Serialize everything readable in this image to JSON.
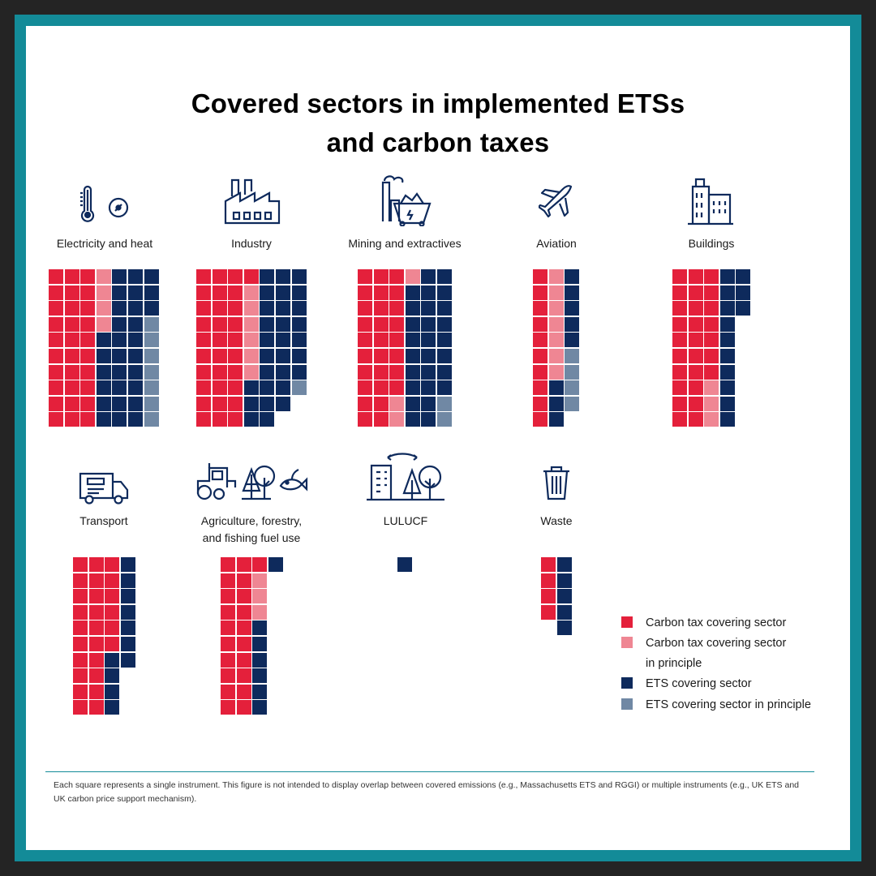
{
  "colors": {
    "carbon_tax": "#e4203b",
    "carbon_tax_principle": "#ef8693",
    "ets": "#0e2a5c",
    "ets_principle": "#7088a4",
    "frame": "#138b98",
    "icon": "#0e2a5c"
  },
  "title": {
    "line1": "Covered sectors in implemented ETSs",
    "line2": "and carbon taxes"
  },
  "chart_data": {
    "type": "waffle",
    "title": "Covered sectors in implemented ETSs and carbon taxes",
    "unit": "Each square represents a single instrument",
    "categories": [
      "carbon_tax",
      "carbon_tax_principle",
      "ets",
      "ets_principle"
    ],
    "sectors": [
      {
        "id": "electricity",
        "label": "Electricity and heat",
        "icon": "thermometer-gauge-icon",
        "columns": [
          [
            "carbon_tax",
            "carbon_tax",
            "carbon_tax",
            "carbon_tax",
            "carbon_tax",
            "carbon_tax",
            "carbon_tax",
            "carbon_tax",
            "carbon_tax",
            "carbon_tax"
          ],
          [
            "carbon_tax",
            "carbon_tax",
            "carbon_tax",
            "carbon_tax",
            "carbon_tax",
            "carbon_tax",
            "carbon_tax",
            "carbon_tax",
            "carbon_tax",
            "carbon_tax"
          ],
          [
            "carbon_tax",
            "carbon_tax",
            "carbon_tax",
            "carbon_tax",
            "carbon_tax",
            "carbon_tax",
            "carbon_tax",
            "carbon_tax",
            "carbon_tax",
            "carbon_tax"
          ],
          [
            "carbon_tax_principle",
            "carbon_tax_principle",
            "carbon_tax_principle",
            "carbon_tax_principle",
            "ets",
            "ets",
            "ets",
            "ets",
            "ets",
            "ets"
          ],
          [
            "ets",
            "ets",
            "ets",
            "ets",
            "ets",
            "ets",
            "ets",
            "ets",
            "ets",
            "ets"
          ],
          [
            "ets",
            "ets",
            "ets",
            "ets",
            "ets",
            "ets",
            "ets",
            "ets",
            "ets",
            "ets"
          ],
          [
            "ets",
            "ets",
            "ets",
            "ets_principle",
            "ets_principle",
            "ets_principle",
            "ets_principle",
            "ets_principle",
            "ets_principle",
            "ets_principle"
          ]
        ]
      },
      {
        "id": "industry",
        "label": "Industry",
        "icon": "factory-icon",
        "columns": [
          [
            "carbon_tax",
            "carbon_tax",
            "carbon_tax",
            "carbon_tax",
            "carbon_tax",
            "carbon_tax",
            "carbon_tax",
            "carbon_tax",
            "carbon_tax",
            "carbon_tax"
          ],
          [
            "carbon_tax",
            "carbon_tax",
            "carbon_tax",
            "carbon_tax",
            "carbon_tax",
            "carbon_tax",
            "carbon_tax",
            "carbon_tax",
            "carbon_tax",
            "carbon_tax"
          ],
          [
            "carbon_tax",
            "carbon_tax",
            "carbon_tax",
            "carbon_tax",
            "carbon_tax",
            "carbon_tax",
            "carbon_tax",
            "carbon_tax",
            "carbon_tax",
            "carbon_tax"
          ],
          [
            "carbon_tax",
            "carbon_tax_principle",
            "carbon_tax_principle",
            "carbon_tax_principle",
            "carbon_tax_principle",
            "carbon_tax_principle",
            "carbon_tax_principle",
            "ets",
            "ets",
            "ets"
          ],
          [
            "ets",
            "ets",
            "ets",
            "ets",
            "ets",
            "ets",
            "ets",
            "ets",
            "ets",
            "ets"
          ],
          [
            "ets",
            "ets",
            "ets",
            "ets",
            "ets",
            "ets",
            "ets",
            "ets",
            "ets"
          ],
          [
            "ets",
            "ets",
            "ets",
            "ets",
            "ets",
            "ets",
            "ets",
            "ets_principle"
          ]
        ]
      },
      {
        "id": "mining",
        "label": "Mining and extractives",
        "icon": "mining-cart-icon",
        "columns": [
          [
            "carbon_tax",
            "carbon_tax",
            "carbon_tax",
            "carbon_tax",
            "carbon_tax",
            "carbon_tax",
            "carbon_tax",
            "carbon_tax",
            "carbon_tax",
            "carbon_tax"
          ],
          [
            "carbon_tax",
            "carbon_tax",
            "carbon_tax",
            "carbon_tax",
            "carbon_tax",
            "carbon_tax",
            "carbon_tax",
            "carbon_tax",
            "carbon_tax",
            "carbon_tax"
          ],
          [
            "carbon_tax",
            "carbon_tax",
            "carbon_tax",
            "carbon_tax",
            "carbon_tax",
            "carbon_tax",
            "carbon_tax",
            "carbon_tax",
            "carbon_tax_principle",
            "carbon_tax_principle"
          ],
          [
            "carbon_tax_principle",
            "ets",
            "ets",
            "ets",
            "ets",
            "ets",
            "ets",
            "ets",
            "ets",
            "ets"
          ],
          [
            "ets",
            "ets",
            "ets",
            "ets",
            "ets",
            "ets",
            "ets",
            "ets",
            "ets",
            "ets"
          ],
          [
            "ets",
            "ets",
            "ets",
            "ets",
            "ets",
            "ets",
            "ets",
            "ets",
            "ets_principle",
            "ets_principle"
          ]
        ]
      },
      {
        "id": "aviation",
        "label": "Aviation",
        "icon": "airplane-icon",
        "columns": [
          [
            "carbon_tax",
            "carbon_tax",
            "carbon_tax",
            "carbon_tax",
            "carbon_tax",
            "carbon_tax",
            "carbon_tax",
            "carbon_tax",
            "carbon_tax",
            "carbon_tax"
          ],
          [
            "carbon_tax_principle",
            "carbon_tax_principle",
            "carbon_tax_principle",
            "carbon_tax_principle",
            "carbon_tax_principle",
            "carbon_tax_principle",
            "carbon_tax_principle",
            "ets",
            "ets",
            "ets"
          ],
          [
            "ets",
            "ets",
            "ets",
            "ets",
            "ets",
            "ets_principle",
            "ets_principle",
            "ets_principle",
            "ets_principle"
          ]
        ]
      },
      {
        "id": "buildings",
        "label": "Buildings",
        "icon": "buildings-icon",
        "columns": [
          [
            "carbon_tax",
            "carbon_tax",
            "carbon_tax",
            "carbon_tax",
            "carbon_tax",
            "carbon_tax",
            "carbon_tax",
            "carbon_tax",
            "carbon_tax",
            "carbon_tax"
          ],
          [
            "carbon_tax",
            "carbon_tax",
            "carbon_tax",
            "carbon_tax",
            "carbon_tax",
            "carbon_tax",
            "carbon_tax",
            "carbon_tax",
            "carbon_tax",
            "carbon_tax"
          ],
          [
            "carbon_tax",
            "carbon_tax",
            "carbon_tax",
            "carbon_tax",
            "carbon_tax",
            "carbon_tax",
            "carbon_tax",
            "carbon_tax_principle",
            "carbon_tax_principle",
            "carbon_tax_principle"
          ],
          [
            "ets",
            "ets",
            "ets",
            "ets",
            "ets",
            "ets",
            "ets",
            "ets",
            "ets",
            "ets"
          ],
          [
            "ets",
            "ets",
            "ets"
          ]
        ]
      },
      {
        "id": "transport",
        "label": "Transport",
        "icon": "truck-icon",
        "columns": [
          [
            "carbon_tax",
            "carbon_tax",
            "carbon_tax",
            "carbon_tax",
            "carbon_tax",
            "carbon_tax",
            "carbon_tax",
            "carbon_tax",
            "carbon_tax",
            "carbon_tax"
          ],
          [
            "carbon_tax",
            "carbon_tax",
            "carbon_tax",
            "carbon_tax",
            "carbon_tax",
            "carbon_tax",
            "carbon_tax",
            "carbon_tax",
            "carbon_tax",
            "carbon_tax"
          ],
          [
            "carbon_tax",
            "carbon_tax",
            "carbon_tax",
            "carbon_tax",
            "carbon_tax",
            "carbon_tax",
            "ets",
            "ets",
            "ets",
            "ets"
          ],
          [
            "ets",
            "ets",
            "ets",
            "ets",
            "ets",
            "ets",
            "ets"
          ]
        ]
      },
      {
        "id": "agriculture",
        "label_line1": "Agriculture, forestry,",
        "label_line2": "and fishing fuel use",
        "icon": "tractor-tree-fish-icon",
        "columns": [
          [
            "carbon_tax",
            "carbon_tax",
            "carbon_tax",
            "carbon_tax",
            "carbon_tax",
            "carbon_tax",
            "carbon_tax",
            "carbon_tax",
            "carbon_tax",
            "carbon_tax"
          ],
          [
            "carbon_tax",
            "carbon_tax",
            "carbon_tax",
            "carbon_tax",
            "carbon_tax",
            "carbon_tax",
            "carbon_tax",
            "carbon_tax",
            "carbon_tax",
            "carbon_tax"
          ],
          [
            "carbon_tax",
            "carbon_tax_principle",
            "carbon_tax_principle",
            "carbon_tax_principle",
            "ets",
            "ets",
            "ets",
            "ets",
            "ets",
            "ets"
          ],
          [
            "ets"
          ]
        ]
      },
      {
        "id": "lulucf",
        "label": "LULUCF",
        "icon": "building-tree-exchange-icon",
        "columns": [
          [
            "ets"
          ]
        ]
      },
      {
        "id": "waste",
        "label": "Waste",
        "icon": "trash-bin-icon",
        "columns": [
          [
            "carbon_tax",
            "carbon_tax",
            "carbon_tax",
            "carbon_tax"
          ],
          [
            "ets",
            "ets",
            "ets",
            "ets",
            "ets"
          ]
        ]
      }
    ],
    "legend": [
      {
        "key": "carbon_tax",
        "label": "Carbon tax covering sector"
      },
      {
        "key": "carbon_tax_principle",
        "label_line1": "Carbon tax covering sector",
        "label_line2": "in principle"
      },
      {
        "key": "ets",
        "label": "ETS covering sector"
      },
      {
        "key": "ets_principle",
        "label": "ETS covering sector in principle"
      }
    ]
  },
  "footnote": "Each square represents a single instrument. This figure is not intended to display overlap between covered emissions (e.g., Massachusetts ETS and RGGI) or multiple instruments (e.g., UK ETS and UK carbon price support mechanism)."
}
